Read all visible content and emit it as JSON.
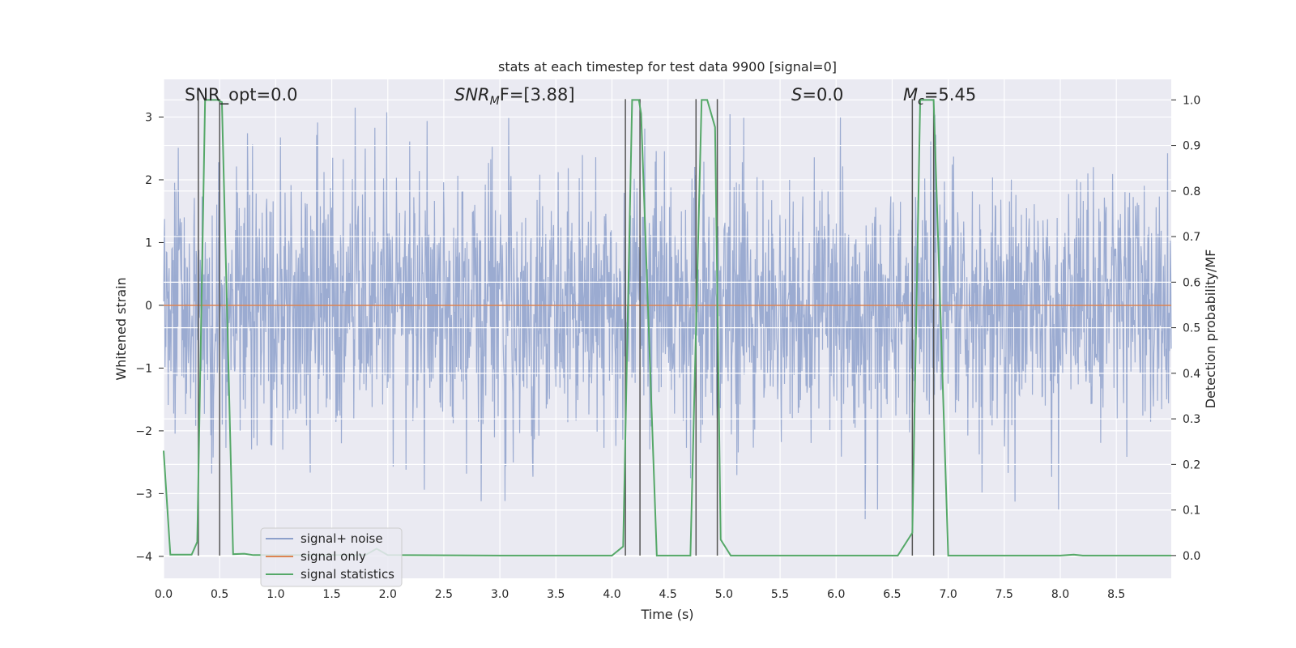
{
  "chart_data": {
    "type": "line",
    "title": "stats at each timestep for test data 9900 [signal=0]",
    "xlabel": "Time (s)",
    "ylabel_left": "Whitened strain",
    "ylabel_right": "Detection probability/MF",
    "xlim": [
      0.0,
      8.99
    ],
    "ylim_left": [
      -4.35,
      3.6
    ],
    "ylim_right": [
      -0.05,
      1.045
    ],
    "xticks": [
      "0.0",
      "0.5",
      "1.0",
      "1.5",
      "2.0",
      "2.5",
      "3.0",
      "3.5",
      "4.0",
      "4.5",
      "5.0",
      "5.5",
      "6.0",
      "6.5",
      "7.0",
      "7.5",
      "8.0",
      "8.5"
    ],
    "yticks_left": [
      "−4",
      "−3",
      "−2",
      "−1",
      "0",
      "1",
      "2",
      "3"
    ],
    "yticks_right": [
      "0.0",
      "0.1",
      "0.2",
      "0.3",
      "0.4",
      "0.5",
      "0.6",
      "0.7",
      "0.8",
      "0.9",
      "1.0"
    ],
    "annotations": {
      "snr_opt": "SNR_opt=0.0",
      "snr_mf_label": "SNR",
      "snr_mf_sub": "M",
      "snr_mf_rest": "F=[3.88]",
      "s_label": "S",
      "s_rest": "=0.0",
      "mc_label": "M",
      "mc_sub": "c",
      "mc_rest": "=5.45"
    },
    "legend": {
      "placement": "lower-left",
      "entries": [
        "signal+ noise",
        "signal only",
        "signal statistics"
      ]
    },
    "colors": {
      "noise": "#8da0cb",
      "signal": "#dd8452",
      "stats": "#55a868",
      "vline": "#555555",
      "plot_bg": "#eaeaf2",
      "grid": "#ffffff"
    },
    "series": [
      {
        "name": "signal+ noise",
        "note": "whitened noise, approx. std 1, range about -3.6 to 3.2"
      },
      {
        "name": "signal only",
        "x": [
          0.0,
          8.99
        ],
        "y": [
          0.0,
          0.0
        ]
      },
      {
        "name": "signal statistics",
        "x": [
          0.0,
          0.06,
          0.25,
          0.3,
          0.37,
          0.48,
          0.52,
          0.62,
          0.72,
          0.8,
          1.8,
          1.9,
          2.0,
          3.0,
          4.0,
          4.1,
          4.18,
          4.24,
          4.26,
          4.4,
          4.7,
          4.8,
          4.85,
          4.92,
          4.97,
          5.06,
          6.0,
          6.55,
          6.68,
          6.75,
          6.87,
          7.0,
          8.0,
          8.12,
          8.2,
          8.99
        ],
        "y": [
          0.23,
          0.002,
          0.002,
          0.03,
          1.0,
          1.0,
          0.995,
          0.003,
          0.004,
          0.001,
          0.001,
          0.015,
          0.001,
          0.0,
          0.0,
          0.02,
          1.0,
          1.0,
          0.97,
          0.0,
          0.0,
          1.0,
          1.0,
          0.94,
          0.035,
          0.0,
          0.0,
          0.0,
          0.05,
          1.0,
          1.0,
          0.0,
          0.0,
          0.002,
          0.0,
          0.0
        ]
      }
    ],
    "vlines": [
      0.31,
      0.5,
      4.12,
      4.25,
      4.75,
      4.94,
      6.68,
      6.87
    ]
  }
}
